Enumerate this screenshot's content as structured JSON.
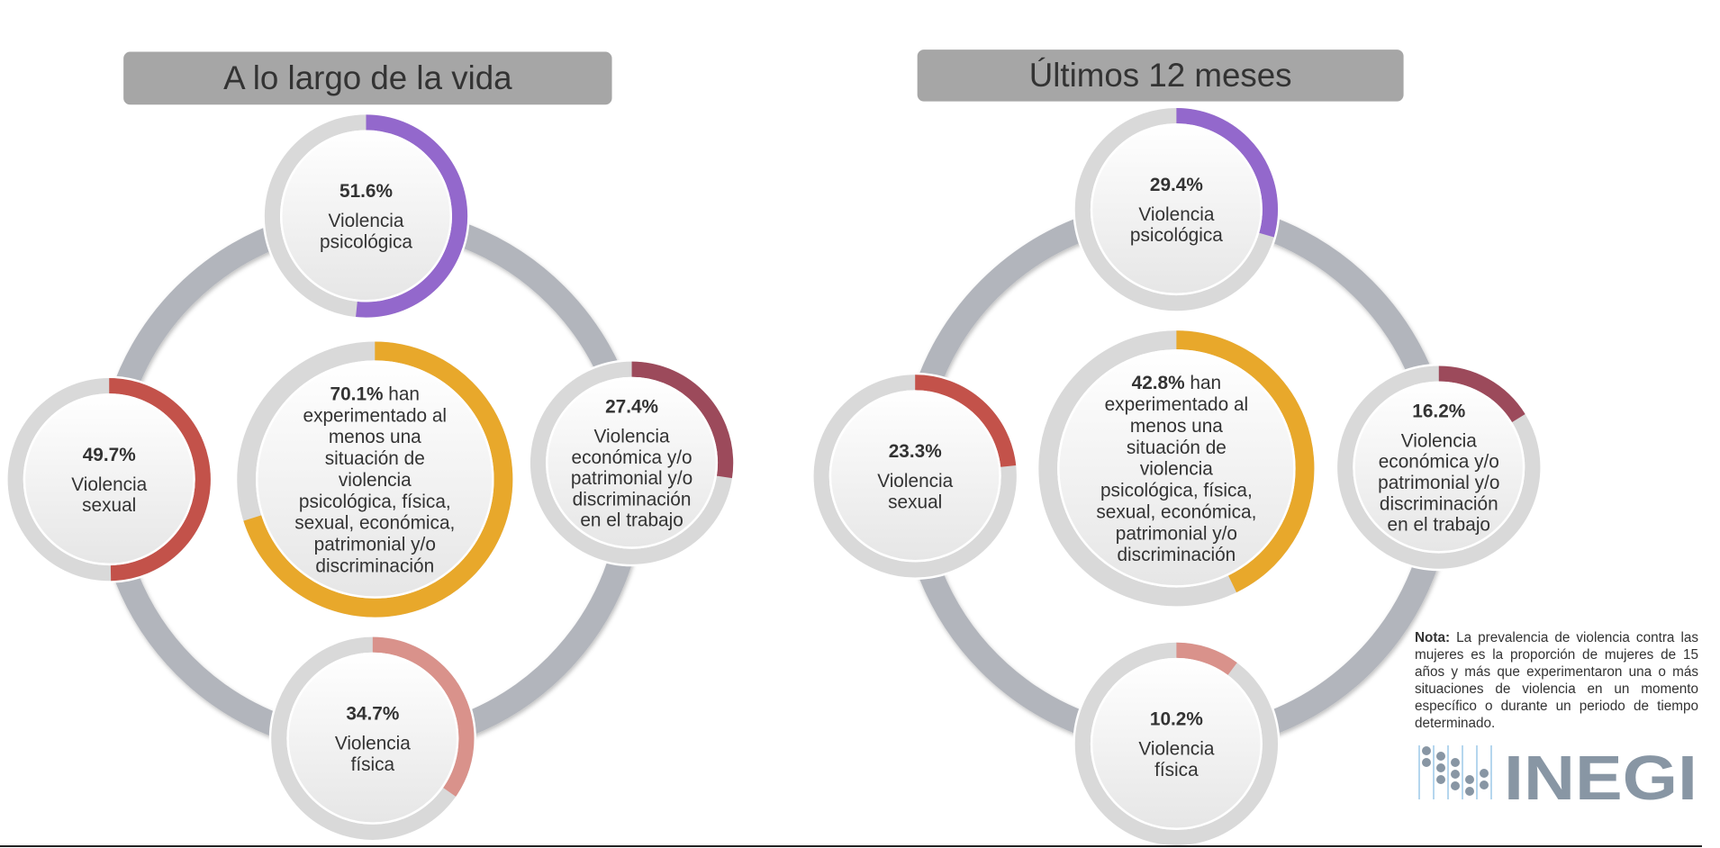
{
  "panels": [
    {
      "title": "A lo largo de la vida",
      "center": {
        "value": 70.1,
        "pct": "70.1%",
        "suffix": " han",
        "lines": [
          "experimentado al",
          "menos una",
          "situación de",
          "violencia",
          "psicológica, física,",
          "sexual, económica,",
          "patrimonial y/o",
          "discriminación"
        ],
        "color": "#e8a82b"
      },
      "donuts": [
        {
          "id": "psicologica",
          "value": 51.6,
          "pct": "51.6%",
          "lines": [
            "Violencia",
            "psicológica"
          ],
          "color": "#9368cc"
        },
        {
          "id": "economica",
          "value": 27.4,
          "pct": "27.4%",
          "lines": [
            "Violencia",
            "económica y/o",
            "patrimonial y/o",
            "discriminación",
            "en el trabajo"
          ],
          "color": "#9c4a5b"
        },
        {
          "id": "fisica",
          "value": 34.7,
          "pct": "34.7%",
          "lines": [
            "Violencia",
            "física"
          ],
          "color": "#d9928b"
        },
        {
          "id": "sexual",
          "value": 49.7,
          "pct": "49.7%",
          "lines": [
            "Violencia",
            "sexual"
          ],
          "color": "#c3524a"
        }
      ]
    },
    {
      "title": "Últimos 12 meses",
      "center": {
        "value": 42.8,
        "pct": "42.8%",
        "suffix": " han",
        "lines": [
          "experimentado al",
          "menos una",
          "situación de",
          "violencia",
          "psicológica, física,",
          "sexual, económica,",
          "patrimonial y/o",
          "discriminación"
        ],
        "color": "#e8a82b"
      },
      "donuts": [
        {
          "id": "psicologica",
          "value": 29.4,
          "pct": "29.4%",
          "lines": [
            "Violencia",
            "psicológica"
          ],
          "color": "#9368cc"
        },
        {
          "id": "economica",
          "value": 16.2,
          "pct": "16.2%",
          "lines": [
            "Violencia",
            "económica y/o",
            "patrimonial y/o",
            "discriminación",
            "en el trabajo"
          ],
          "color": "#9c4a5b"
        },
        {
          "id": "fisica",
          "value": 10.2,
          "pct": "10.2%",
          "lines": [
            "Violencia",
            "física"
          ],
          "color": "#d9928b"
        },
        {
          "id": "sexual",
          "value": 23.3,
          "pct": "23.3%",
          "lines": [
            "Violencia",
            "sexual"
          ],
          "color": "#c3524a"
        }
      ]
    }
  ],
  "note": {
    "label": "Nota:",
    "text": " La prevalencia de violencia contra las mujeres es la proporción de mujeres de 15 años y más que experimentaron una o más situaciones de violencia en un momento específico o durante un periodo de tiempo determinado."
  },
  "logo": {
    "text": "INEGI",
    "color": "#8896a4"
  },
  "colors": {
    "track": "#d9d9d9",
    "ring": "#b2b5bc",
    "title_bg": "#a6a6a6"
  }
}
